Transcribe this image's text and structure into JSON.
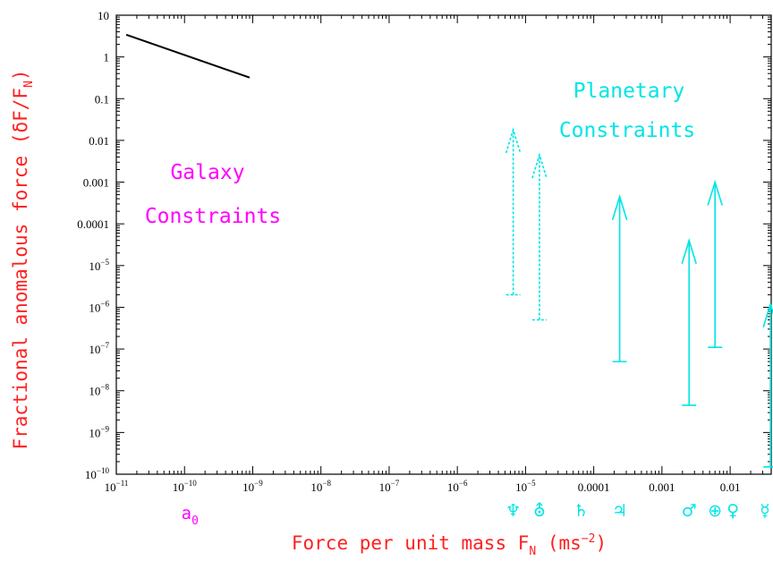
{
  "colors": {
    "axis_title": "#ff2020",
    "galaxy": "#ff00ff",
    "planetary": "#00e5e5",
    "frame": "#000000"
  },
  "chart_data": {
    "type": "line",
    "x_scale": "log",
    "y_scale": "log",
    "xlim": [
      1e-11,
      0.04
    ],
    "ylim": [
      1e-10,
      10
    ],
    "xlabel": "Force per unit mass F",
    "xlabel_sub": "N",
    "xlabel_units": " (ms",
    "xlabel_units_exp": "−2",
    "xlabel_units_close": ")",
    "ylabel": "Fractional anomalous force (δF/F",
    "ylabel_sub": "N",
    "ylabel_close": ")",
    "x_ticks": [
      {
        "value": 1e-11,
        "base": "10",
        "exp": "−11"
      },
      {
        "value": 1e-10,
        "base": "10",
        "exp": "−10"
      },
      {
        "value": 1e-09,
        "base": "10",
        "exp": "−9"
      },
      {
        "value": 1e-08,
        "base": "10",
        "exp": "−8"
      },
      {
        "value": 1e-07,
        "base": "10",
        "exp": "−7"
      },
      {
        "value": 1e-06,
        "base": "10",
        "exp": "−6"
      },
      {
        "value": 1e-05,
        "base": "10",
        "exp": "−5"
      },
      {
        "value": 0.0001,
        "base": "0.0001",
        "exp": ""
      },
      {
        "value": 0.001,
        "base": "0.001",
        "exp": ""
      },
      {
        "value": 0.01,
        "base": "0.01",
        "exp": ""
      }
    ],
    "y_ticks": [
      {
        "value": 10,
        "base": "10",
        "exp": ""
      },
      {
        "value": 1,
        "base": "1",
        "exp": ""
      },
      {
        "value": 0.1,
        "base": "0.1",
        "exp": ""
      },
      {
        "value": 0.01,
        "base": "0.01",
        "exp": ""
      },
      {
        "value": 0.001,
        "base": "0.001",
        "exp": ""
      },
      {
        "value": 0.0001,
        "base": "0.0001",
        "exp": ""
      },
      {
        "value": 1e-05,
        "base": "10",
        "exp": "−5"
      },
      {
        "value": 1e-06,
        "base": "10",
        "exp": "−6"
      },
      {
        "value": 1e-07,
        "base": "10",
        "exp": "−7"
      },
      {
        "value": 1e-08,
        "base": "10",
        "exp": "−8"
      },
      {
        "value": 1e-09,
        "base": "10",
        "exp": "−9"
      },
      {
        "value": 1e-10,
        "base": "10",
        "exp": "−10"
      }
    ],
    "galaxy_line": {
      "x": [
        1.4e-11,
        9e-10
      ],
      "y": [
        3.4,
        0.32
      ]
    },
    "galaxy_label_lines": [
      "Galaxy",
      "Constraints"
    ],
    "a0_label": "a",
    "a0_sub": "0",
    "a0_x": 1.2e-10,
    "planetary_label_lines": [
      "Planetary",
      "Constraints"
    ],
    "planet_limits": [
      {
        "planet": "Neptune",
        "symbol": "♆",
        "x": 6.6e-06,
        "y_low": 2e-06,
        "y_high": 0.018,
        "style": "dotted"
      },
      {
        "planet": "Uranus",
        "symbol": "⛢",
        "x": 1.6e-05,
        "y_low": 5e-07,
        "y_high": 0.0045,
        "style": "dotted"
      },
      {
        "planet": "Saturn",
        "symbol": "♄",
        "x": 6.5e-05,
        "y_low": null,
        "y_high": null,
        "style": "none"
      },
      {
        "planet": "Jupiter",
        "symbol": "♃",
        "x": 0.00024,
        "y_low": 5e-08,
        "y_high": 0.00045,
        "style": "solid"
      },
      {
        "planet": "Mars",
        "symbol": "♂",
        "x": 0.0025,
        "y_low": 4.5e-09,
        "y_high": 4e-05,
        "style": "solid"
      },
      {
        "planet": "Earth",
        "symbol": "⊕",
        "x": 0.006,
        "y_low": 1.1e-07,
        "y_high": 0.001,
        "style": "solid"
      },
      {
        "planet": "Venus",
        "symbol": "♀",
        "x": 0.011,
        "y_low": null,
        "y_high": null,
        "style": "none"
      },
      {
        "planet": "Mercury",
        "symbol": "☿",
        "x": 0.039,
        "y_low": 1.5e-10,
        "y_high": 1.2e-06,
        "style": "solid"
      }
    ]
  }
}
